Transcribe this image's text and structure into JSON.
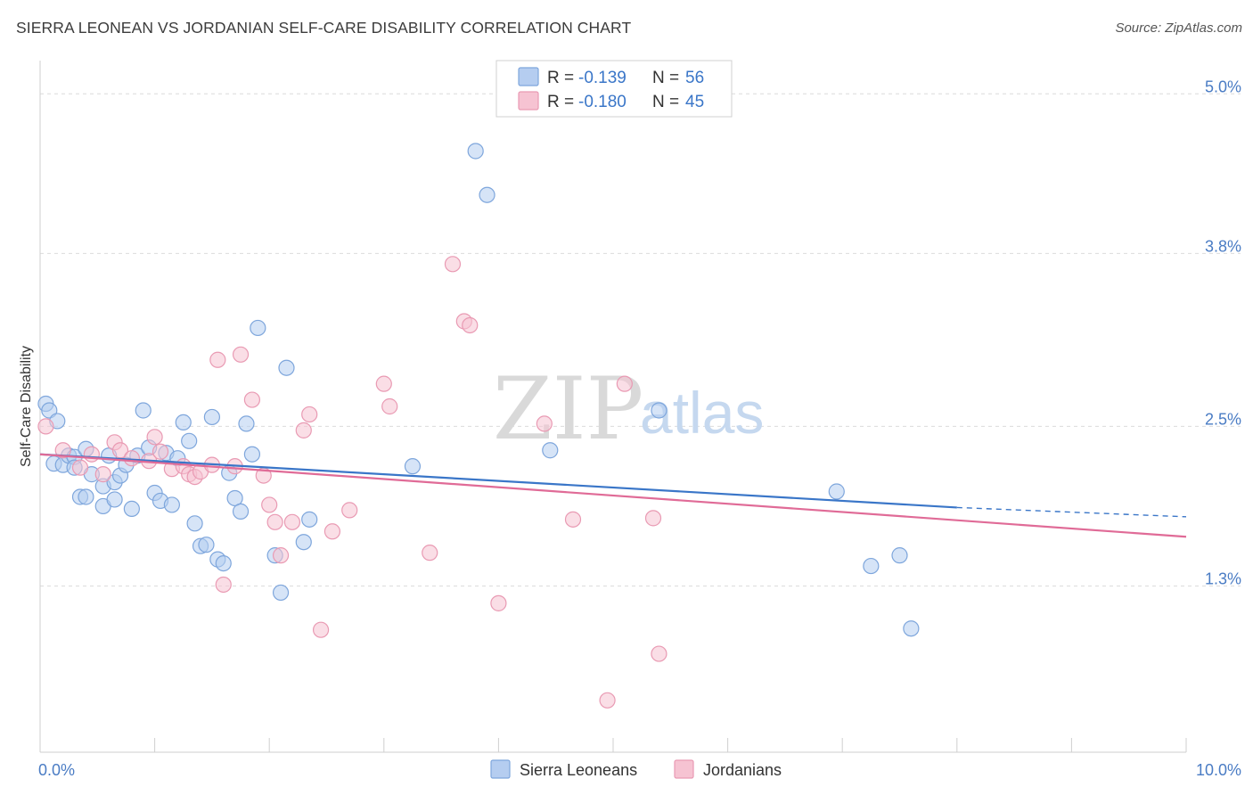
{
  "header": {
    "title": "SIERRA LEONEAN VS JORDANIAN SELF-CARE DISABILITY CORRELATION CHART",
    "source": "Source: ZipAtlas.com"
  },
  "watermark": {
    "zip": "ZIP",
    "atlas": "atlas"
  },
  "colors": {
    "blue_fill": "#b5cdf0",
    "blue_stroke": "#7ea6dc",
    "blue_line": "#3a76c8",
    "pink_fill": "#f6c3d2",
    "pink_stroke": "#e99ab3",
    "pink_line": "#e06b97",
    "tick_text": "#4a7cc4",
    "grid": "#dcdcdc"
  },
  "legend": {
    "rows": [
      {
        "r_label": "R =",
        "r_value": "-0.139",
        "n_label": "N =",
        "n_value": "56"
      },
      {
        "r_label": "R =",
        "r_value": "-0.180",
        "n_label": "N =",
        "n_value": "45"
      }
    ]
  },
  "bottom_legend": [
    "Sierra Leoneans",
    "Jordanians"
  ],
  "chart_data": {
    "type": "scatter",
    "title": "SIERRA LEONEAN VS JORDANIAN SELF-CARE DISABILITY CORRELATION CHART",
    "xlabel": "",
    "ylabel": "Self-Care Disability",
    "xlim": [
      0,
      10
    ],
    "ylim": [
      0.05,
      5.25
    ],
    "x_tick_labels": [
      "0.0%",
      "10.0%"
    ],
    "y_ticks": [
      1.3,
      2.5,
      3.8,
      5.0
    ],
    "y_tick_labels": [
      "1.3%",
      "2.5%",
      "3.8%",
      "5.0%"
    ],
    "legend_position": "top-center",
    "series": [
      {
        "name": "Sierra Leoneans",
        "color": "#b5cdf0",
        "trend": {
          "x": [
            0,
            8.0
          ],
          "y": [
            2.29,
            1.89
          ],
          "dashed_extension_to_x": 10.0,
          "dashed_extension_y": 1.82
        },
        "points": [
          [
            0.05,
            2.67
          ],
          [
            0.08,
            2.62
          ],
          [
            0.12,
            2.22
          ],
          [
            0.15,
            2.54
          ],
          [
            0.2,
            2.21
          ],
          [
            0.25,
            2.28
          ],
          [
            0.3,
            2.27
          ],
          [
            0.3,
            2.19
          ],
          [
            0.35,
            1.97
          ],
          [
            0.4,
            1.97
          ],
          [
            0.4,
            2.33
          ],
          [
            0.45,
            2.14
          ],
          [
            0.55,
            1.9
          ],
          [
            0.55,
            2.05
          ],
          [
            0.6,
            2.28
          ],
          [
            0.65,
            1.95
          ],
          [
            0.65,
            2.08
          ],
          [
            0.7,
            2.13
          ],
          [
            0.75,
            2.21
          ],
          [
            0.8,
            1.88
          ],
          [
            0.85,
            2.28
          ],
          [
            0.9,
            2.62
          ],
          [
            0.95,
            2.34
          ],
          [
            1.0,
            2.0
          ],
          [
            1.05,
            1.94
          ],
          [
            1.1,
            2.3
          ],
          [
            1.15,
            1.91
          ],
          [
            1.2,
            2.26
          ],
          [
            1.25,
            2.53
          ],
          [
            1.3,
            2.39
          ],
          [
            1.35,
            1.77
          ],
          [
            1.4,
            1.6
          ],
          [
            1.45,
            1.61
          ],
          [
            1.5,
            2.57
          ],
          [
            1.55,
            1.5
          ],
          [
            1.6,
            1.47
          ],
          [
            1.65,
            2.15
          ],
          [
            1.7,
            1.96
          ],
          [
            1.75,
            1.86
          ],
          [
            1.8,
            2.52
          ],
          [
            1.85,
            2.29
          ],
          [
            1.9,
            3.24
          ],
          [
            2.05,
            1.53
          ],
          [
            2.1,
            1.25
          ],
          [
            2.15,
            2.94
          ],
          [
            2.3,
            1.63
          ],
          [
            2.35,
            1.8
          ],
          [
            3.25,
            2.2
          ],
          [
            3.8,
            4.57
          ],
          [
            3.9,
            4.24
          ],
          [
            4.45,
            2.32
          ],
          [
            5.4,
            2.62
          ],
          [
            6.95,
            2.01
          ],
          [
            7.25,
            1.45
          ],
          [
            7.5,
            1.53
          ],
          [
            7.6,
            0.98
          ]
        ]
      },
      {
        "name": "Jordanians",
        "color": "#f6c3d2",
        "trend": {
          "x": [
            0,
            10.0
          ],
          "y": [
            2.29,
            1.67
          ]
        },
        "points": [
          [
            0.05,
            2.5
          ],
          [
            0.2,
            2.32
          ],
          [
            0.35,
            2.19
          ],
          [
            0.45,
            2.29
          ],
          [
            0.55,
            2.14
          ],
          [
            0.65,
            2.38
          ],
          [
            0.7,
            2.32
          ],
          [
            0.8,
            2.26
          ],
          [
            0.95,
            2.24
          ],
          [
            1.0,
            2.42
          ],
          [
            1.05,
            2.31
          ],
          [
            1.15,
            2.18
          ],
          [
            1.25,
            2.2
          ],
          [
            1.3,
            2.14
          ],
          [
            1.35,
            2.12
          ],
          [
            1.4,
            2.16
          ],
          [
            1.5,
            2.21
          ],
          [
            1.55,
            3.0
          ],
          [
            1.6,
            1.31
          ],
          [
            1.7,
            2.2
          ],
          [
            1.75,
            3.04
          ],
          [
            1.85,
            2.7
          ],
          [
            1.95,
            2.13
          ],
          [
            2.0,
            1.91
          ],
          [
            2.05,
            1.78
          ],
          [
            2.1,
            1.53
          ],
          [
            2.2,
            1.78
          ],
          [
            2.3,
            2.47
          ],
          [
            2.35,
            2.59
          ],
          [
            2.45,
            0.97
          ],
          [
            2.55,
            1.71
          ],
          [
            2.7,
            1.87
          ],
          [
            3.0,
            2.82
          ],
          [
            3.05,
            2.65
          ],
          [
            3.4,
            1.55
          ],
          [
            3.6,
            3.72
          ],
          [
            3.7,
            3.29
          ],
          [
            3.75,
            3.26
          ],
          [
            4.0,
            1.17
          ],
          [
            4.4,
            2.52
          ],
          [
            4.65,
            1.8
          ],
          [
            4.95,
            0.44
          ],
          [
            5.1,
            2.82
          ],
          [
            5.35,
            1.81
          ],
          [
            5.4,
            0.79
          ]
        ]
      }
    ]
  }
}
